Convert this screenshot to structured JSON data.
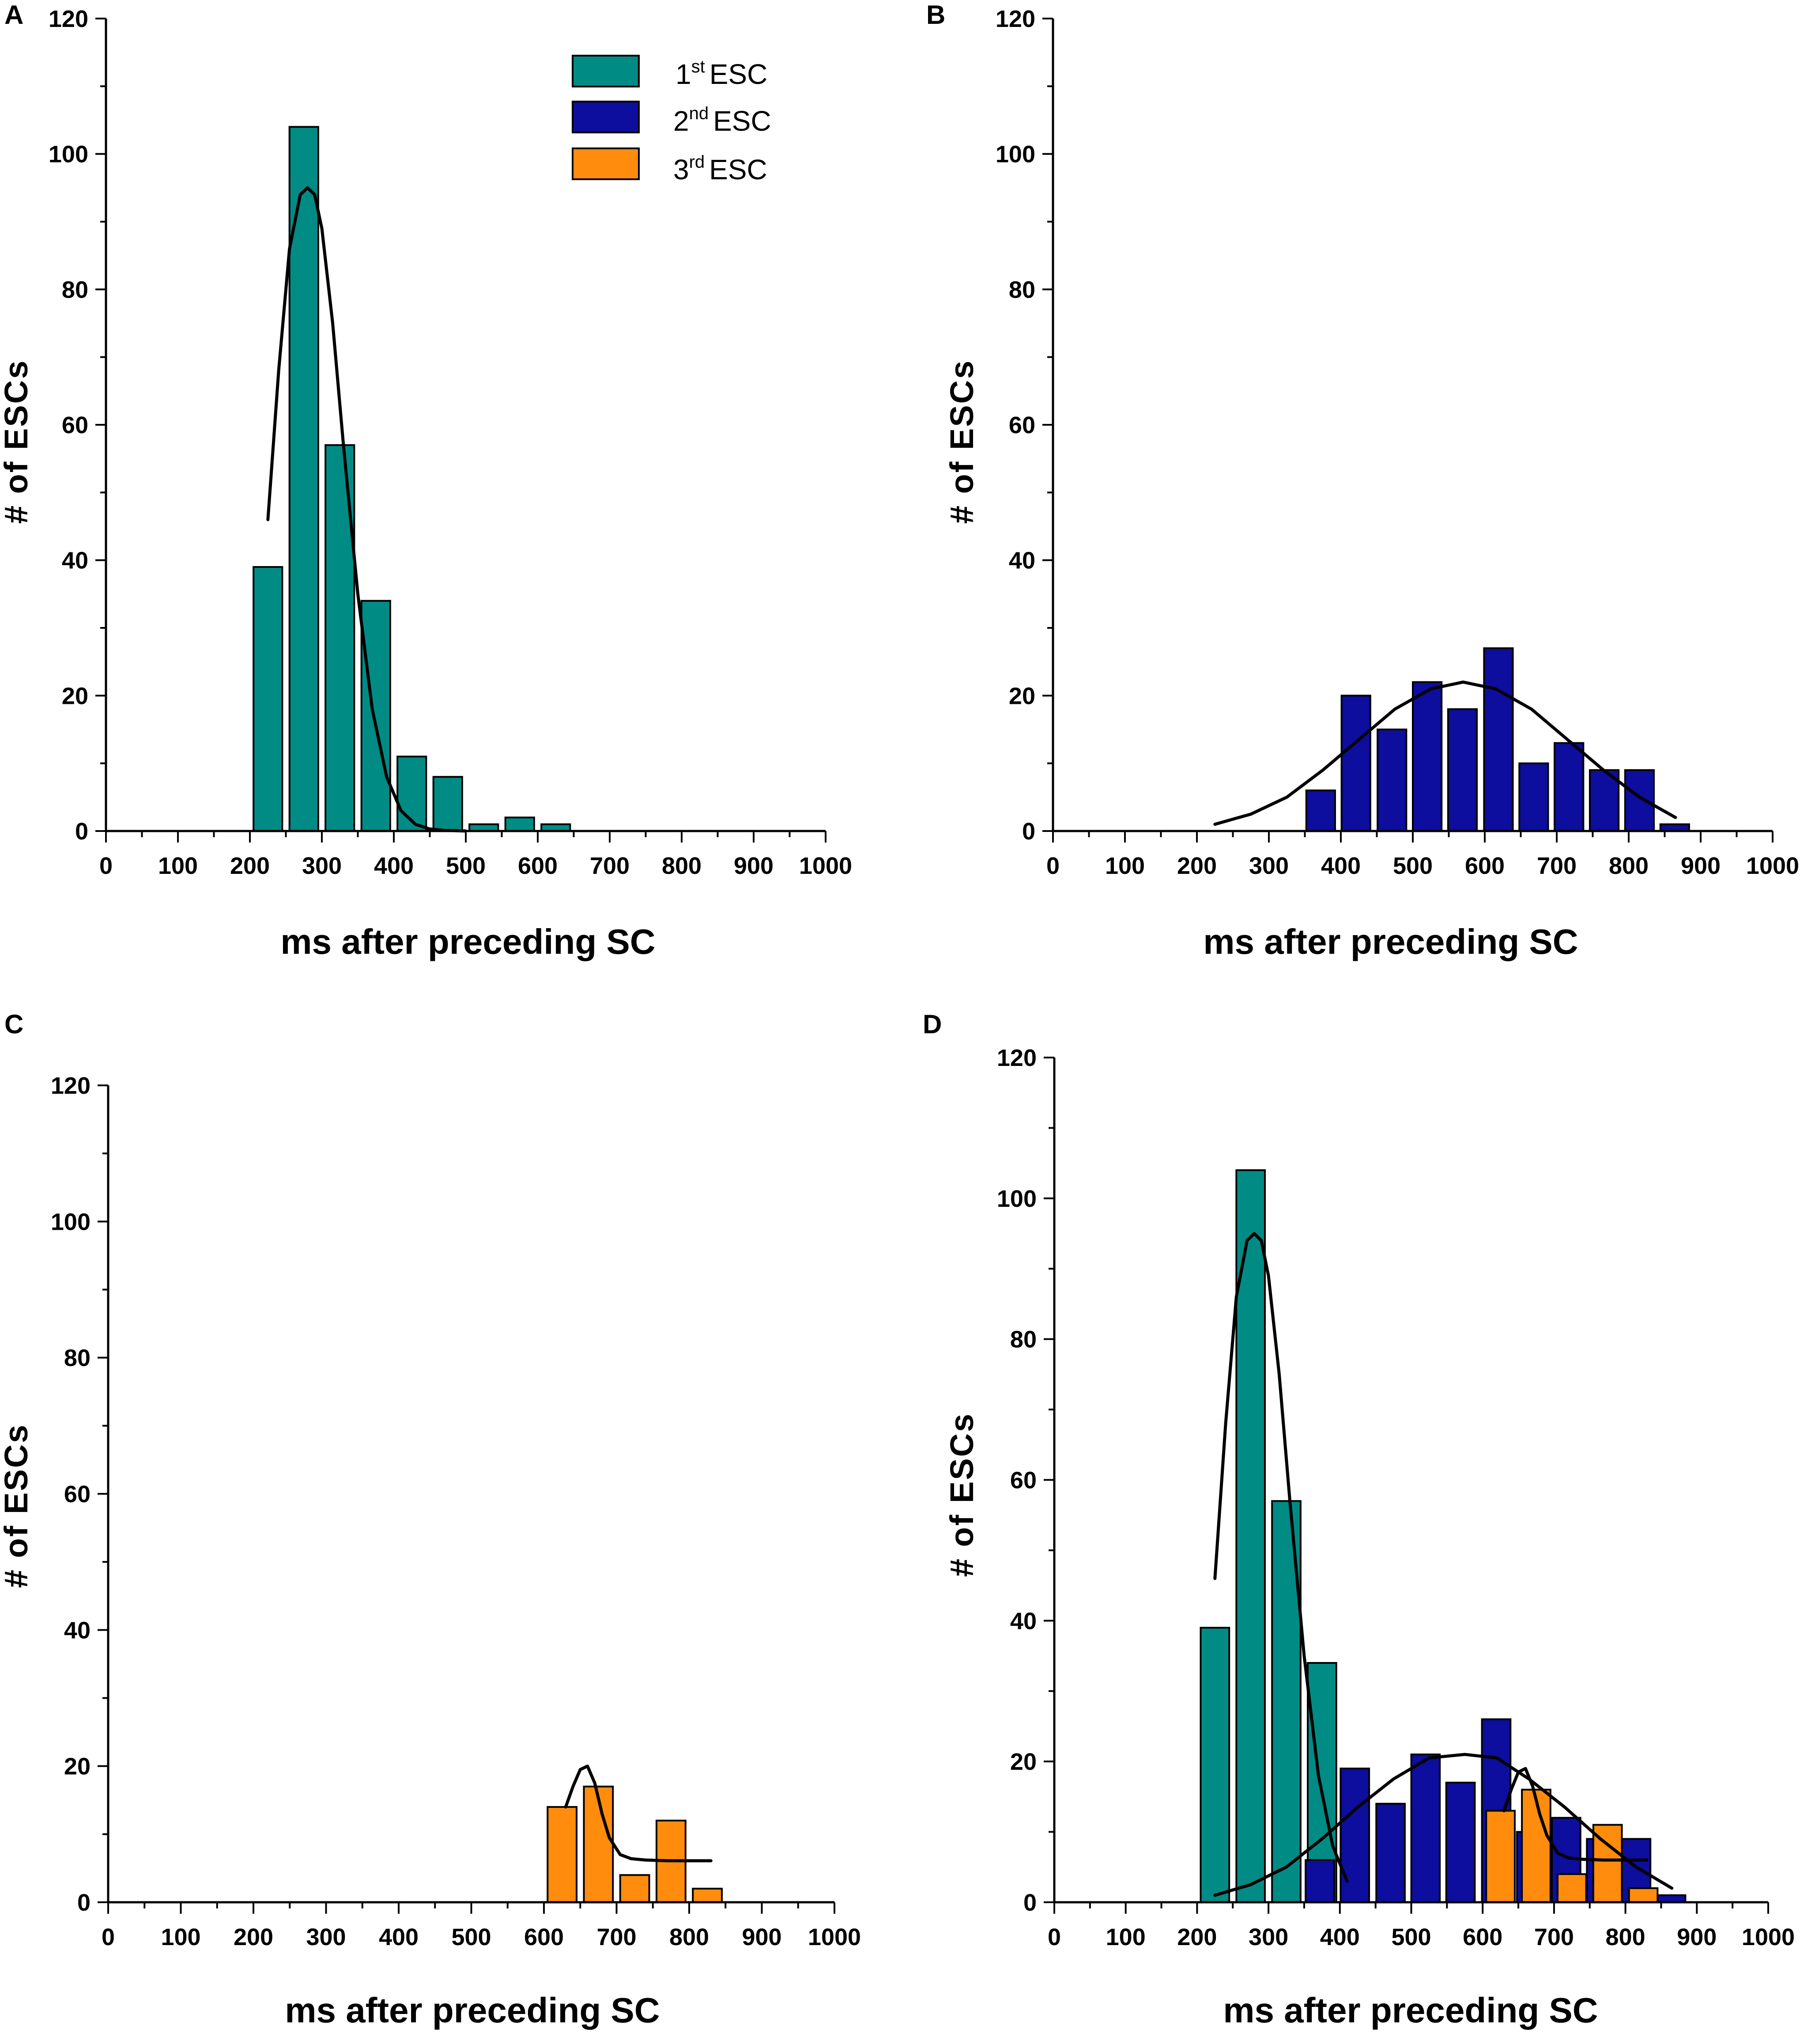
{
  "colors": {
    "first_esc": "#008B85",
    "second_esc": "#0D0D9E",
    "third_esc": "#FF8C0D"
  },
  "legend": {
    "items": [
      {
        "ordinal": "1",
        "sup": "st",
        "label": "ESC",
        "series": "first_esc"
      },
      {
        "ordinal": "2",
        "sup": "nd",
        "label": "ESC",
        "series": "second_esc"
      },
      {
        "ordinal": "3",
        "sup": "rd",
        "label": "ESC",
        "series": "third_esc"
      }
    ]
  },
  "chart_data": [
    {
      "panel": "A",
      "type": "bar",
      "xlabel": "ms after preceding SC",
      "ylabel": "# of ESCs",
      "xlim": [
        0,
        1000
      ],
      "ylim": [
        0,
        120
      ],
      "xticks": [
        0,
        100,
        200,
        300,
        400,
        500,
        600,
        700,
        800,
        900,
        1000
      ],
      "yticks": [
        0,
        20,
        40,
        60,
        80,
        100,
        120
      ],
      "legend_position": "top-right",
      "series": [
        {
          "name": "1st ESC",
          "color_key": "first_esc",
          "bins": [
            {
              "x0": 205,
              "x1": 245,
              "value": 39
            },
            {
              "x0": 255,
              "x1": 295,
              "value": 104
            },
            {
              "x0": 305,
              "x1": 345,
              "value": 57
            },
            {
              "x0": 355,
              "x1": 395,
              "value": 34
            },
            {
              "x0": 405,
              "x1": 445,
              "value": 11
            },
            {
              "x0": 455,
              "x1": 495,
              "value": 8
            },
            {
              "x0": 505,
              "x1": 545,
              "value": 1
            },
            {
              "x0": 555,
              "x1": 595,
              "value": 2
            },
            {
              "x0": 605,
              "x1": 645,
              "value": 1
            }
          ],
          "fit": {
            "x": [
              225,
              240,
              255,
              270,
              280,
              290,
              300,
              315,
              330,
              350,
              370,
              390,
              410,
              430,
              450,
              470,
              500
            ],
            "y": [
              46,
              68,
              86,
              94,
              95,
              94,
              89,
              75,
              57,
              35,
              18,
              8,
              3,
              1,
              0.3,
              0.1,
              0
            ]
          }
        }
      ]
    },
    {
      "panel": "B",
      "type": "bar",
      "xlabel": "ms after preceding SC",
      "ylabel": "# of ESCs",
      "xlim": [
        0,
        1000
      ],
      "ylim": [
        0,
        120
      ],
      "xticks": [
        0,
        100,
        200,
        300,
        400,
        500,
        600,
        700,
        800,
        900,
        1000
      ],
      "yticks": [
        0,
        20,
        40,
        60,
        80,
        100,
        120
      ],
      "series": [
        {
          "name": "2nd ESC",
          "color_key": "second_esc",
          "bins": [
            {
              "x0": 352,
              "x1": 392,
              "value": 6
            },
            {
              "x0": 401,
              "x1": 441,
              "value": 20
            },
            {
              "x0": 451,
              "x1": 491,
              "value": 15
            },
            {
              "x0": 500,
              "x1": 540,
              "value": 22
            },
            {
              "x0": 549,
              "x1": 589,
              "value": 18
            },
            {
              "x0": 599,
              "x1": 639,
              "value": 27
            },
            {
              "x0": 648,
              "x1": 688,
              "value": 10
            },
            {
              "x0": 697,
              "x1": 737,
              "value": 13
            },
            {
              "x0": 746,
              "x1": 786,
              "value": 9
            },
            {
              "x0": 795,
              "x1": 835,
              "value": 9
            },
            {
              "x0": 844,
              "x1": 884,
              "value": 1
            }
          ],
          "fit": {
            "x": [
              225,
              275,
              325,
              375,
              425,
              475,
              525,
              570,
              615,
              665,
              715,
              765,
              815,
              865
            ],
            "y": [
              1,
              2.5,
              5,
              9,
              13.5,
              18,
              21,
              22,
              21,
              18,
              13.5,
              9,
              5,
              2
            ]
          }
        }
      ]
    },
    {
      "panel": "C",
      "type": "bar",
      "xlabel": "ms after preceding SC",
      "ylabel": "# of ESCs",
      "xlim": [
        0,
        1000
      ],
      "ylim": [
        0,
        120
      ],
      "xticks": [
        0,
        100,
        200,
        300,
        400,
        500,
        600,
        700,
        800,
        900,
        1000
      ],
      "yticks": [
        0,
        20,
        40,
        60,
        80,
        100,
        120
      ],
      "series": [
        {
          "name": "3rd ESC",
          "color_key": "third_esc",
          "bins": [
            {
              "x0": 605,
              "x1": 645,
              "value": 14
            },
            {
              "x0": 655,
              "x1": 695,
              "value": 17
            },
            {
              "x0": 705,
              "x1": 745,
              "value": 4
            },
            {
              "x0": 755,
              "x1": 795,
              "value": 12
            },
            {
              "x0": 805,
              "x1": 845,
              "value": 2
            }
          ],
          "fit": {
            "x": [
              630,
              640,
              650,
              660,
              670,
              680,
              690,
              705,
              720,
              740,
              770,
              800,
              830
            ],
            "y": [
              14,
              17,
              19.5,
              20,
              17.5,
              13,
              9.5,
              7,
              6.4,
              6.2,
              6.1,
              6.1,
              6.1
            ]
          }
        }
      ]
    },
    {
      "panel": "D",
      "type": "bar",
      "xlabel": "ms after preceding SC",
      "ylabel": "# of ESCs",
      "xlim": [
        0,
        1000
      ],
      "ylim": [
        0,
        120
      ],
      "xticks": [
        0,
        100,
        200,
        300,
        400,
        500,
        600,
        700,
        800,
        900,
        1000
      ],
      "yticks": [
        0,
        20,
        40,
        60,
        80,
        100,
        120
      ],
      "series": [
        {
          "name": "1st ESC",
          "color_key": "first_esc",
          "bins": [
            {
              "x0": 205,
              "x1": 245,
              "value": 39
            },
            {
              "x0": 255,
              "x1": 295,
              "value": 104
            },
            {
              "x0": 305,
              "x1": 345,
              "value": 57
            },
            {
              "x0": 355,
              "x1": 395,
              "value": 34
            }
          ],
          "fit": {
            "x": [
              225,
              240,
              255,
              270,
              280,
              290,
              300,
              315,
              330,
              350,
              370,
              390,
              410
            ],
            "y": [
              46,
              68,
              86,
              94,
              95,
              94,
              89,
              75,
              57,
              35,
              18,
              8,
              3
            ]
          }
        },
        {
          "name": "2nd ESC",
          "color_key": "second_esc",
          "bins": [
            {
              "x0": 352,
              "x1": 392,
              "value": 6
            },
            {
              "x0": 401,
              "x1": 441,
              "value": 19
            },
            {
              "x0": 451,
              "x1": 491,
              "value": 14
            },
            {
              "x0": 500,
              "x1": 540,
              "value": 21
            },
            {
              "x0": 549,
              "x1": 589,
              "value": 17
            },
            {
              "x0": 599,
              "x1": 639,
              "value": 26
            },
            {
              "x0": 648,
              "x1": 688,
              "value": 10
            },
            {
              "x0": 697,
              "x1": 737,
              "value": 12
            },
            {
              "x0": 746,
              "x1": 786,
              "value": 9
            },
            {
              "x0": 795,
              "x1": 835,
              "value": 9
            },
            {
              "x0": 844,
              "x1": 884,
              "value": 1
            }
          ],
          "fit": {
            "x": [
              225,
              275,
              325,
              375,
              425,
              475,
              525,
              575,
              620,
              665,
              715,
              765,
              815,
              865
            ],
            "y": [
              1,
              2.5,
              5,
              9,
              13.5,
              17.5,
              20.5,
              21,
              20.5,
              17.5,
              13.5,
              9,
              5,
              2
            ]
          }
        },
        {
          "name": "3rd ESC",
          "color_key": "third_esc",
          "bins": [
            {
              "x0": 605,
              "x1": 645,
              "value": 13
            },
            {
              "x0": 655,
              "x1": 695,
              "value": 16
            },
            {
              "x0": 705,
              "x1": 745,
              "value": 4
            },
            {
              "x0": 755,
              "x1": 795,
              "value": 11
            },
            {
              "x0": 805,
              "x1": 845,
              "value": 2
            }
          ],
          "fit": {
            "x": [
              630,
              640,
              650,
              660,
              670,
              680,
              690,
              705,
              720,
              740,
              770,
              800,
              830
            ],
            "y": [
              13,
              16,
              18.5,
              19,
              16.5,
              12.5,
              9.5,
              7,
              6.3,
              6.1,
              6,
              6,
              6
            ]
          }
        }
      ]
    }
  ]
}
